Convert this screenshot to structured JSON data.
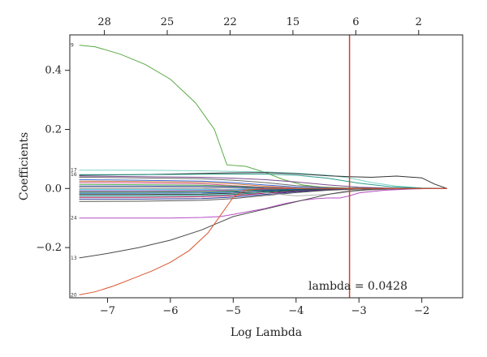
{
  "chart_data": {
    "type": "line",
    "title": "",
    "xlabel": "Log Lambda",
    "ylabel": "Coefficients",
    "xlim": [
      -7.6,
      -1.35
    ],
    "ylim": [
      -0.37,
      0.52
    ],
    "x_ticks": [
      -7,
      -6,
      -5,
      -4,
      -3,
      -2
    ],
    "x_tick_labels": [
      "−7",
      "−6",
      "−5",
      "−4",
      "−3",
      "−2"
    ],
    "y_ticks": [
      0.4,
      0.2,
      0.0,
      -0.2
    ],
    "y_tick_labels": [
      "0.4",
      "0.2",
      "0.0",
      "−0.2"
    ],
    "top_axis": {
      "positions": [
        -7.05,
        -6.05,
        -5.05,
        -4.05,
        -3.05,
        -2.05
      ],
      "labels": [
        "28",
        "25",
        "22",
        "15",
        "6",
        "2"
      ]
    },
    "vline": {
      "x": -3.15,
      "color": "#c8452b"
    },
    "annotation": "lambda = 0.0428",
    "grid": false,
    "series": [
      {
        "label": "9",
        "color": "#5aab46",
        "x": [
          -7.45,
          -7.2,
          -6.8,
          -6.4,
          -6.0,
          -5.6,
          -5.3,
          -5.1,
          -4.8,
          -4.5,
          -4.2,
          -3.9,
          -3.6,
          -3.2,
          -2.8,
          -2.4,
          -2.0,
          -1.6
        ],
        "y": [
          0.485,
          0.48,
          0.455,
          0.42,
          0.37,
          0.29,
          0.2,
          0.08,
          0.075,
          0.055,
          0.03,
          0.012,
          0.005,
          0.002,
          0.001,
          0.0,
          0.0,
          0.0
        ]
      },
      {
        "label": "17",
        "color": "#7fd3c8",
        "x": [
          -7.45,
          -7.0,
          -6.5,
          -6.0,
          -5.5,
          -5.0,
          -4.5,
          -4.0,
          -3.5,
          -3.15,
          -2.8,
          -2.4,
          -2.0,
          -1.6
        ],
        "y": [
          0.062,
          0.062,
          0.062,
          0.061,
          0.06,
          0.058,
          0.056,
          0.052,
          0.045,
          0.036,
          0.02,
          0.008,
          0.002,
          0.0
        ]
      },
      {
        "label": "",
        "color": "#333333",
        "x": [
          -7.45,
          -7.0,
          -6.5,
          -6.0,
          -5.5,
          -5.0,
          -4.5,
          -4.0,
          -3.5,
          -3.15,
          -2.8,
          -2.4,
          -2.0,
          -1.8,
          -1.6
        ],
        "y": [
          0.045,
          0.046,
          0.047,
          0.049,
          0.051,
          0.053,
          0.054,
          0.05,
          0.043,
          0.04,
          0.038,
          0.042,
          0.036,
          0.015,
          0.0
        ]
      },
      {
        "label": "16",
        "color": "#2a9d8f",
        "x": [
          -7.45,
          -6.5,
          -5.5,
          -5.0,
          -4.5,
          -4.0,
          -3.5,
          -3.0,
          -2.5,
          -2.0,
          -1.6
        ],
        "y": [
          0.047,
          0.047,
          0.048,
          0.049,
          0.049,
          0.045,
          0.035,
          0.018,
          0.006,
          0.001,
          0.0
        ]
      },
      {
        "label": "",
        "color": "#7b4a8c",
        "x": [
          -7.45,
          -6.5,
          -5.5,
          -5.0,
          -4.5,
          -4.0,
          -3.5,
          -3.0,
          -2.5,
          -2.0,
          -1.6
        ],
        "y": [
          0.042,
          0.04,
          0.038,
          0.035,
          0.03,
          0.022,
          0.012,
          0.004,
          0.001,
          0.0,
          0.0
        ]
      },
      {
        "label": "",
        "color": "#6a6a6a",
        "x": [
          -7.45,
          -6.5,
          -5.5,
          -5.0,
          -4.5,
          -4.0,
          -3.5,
          -3.0,
          -2.5,
          -2.0,
          -1.6
        ],
        "y": [
          0.038,
          0.036,
          0.033,
          0.028,
          0.02,
          0.01,
          0.003,
          0.0,
          0.0,
          0.0,
          0.0
        ]
      },
      {
        "label": "",
        "color": "#3b6bd6",
        "x": [
          -7.45,
          -6.5,
          -5.5,
          -5.0,
          -4.5,
          -4.0,
          -3.5,
          -3.0,
          -2.5,
          -2.0,
          -1.6
        ],
        "y": [
          0.03,
          0.028,
          0.025,
          0.02,
          0.012,
          0.005,
          0.001,
          0.0,
          0.0,
          0.0,
          0.0
        ]
      },
      {
        "label": "",
        "color": "#d17a3a",
        "x": [
          -7.45,
          -6.5,
          -5.5,
          -5.0,
          -4.5,
          -4.0,
          -3.5,
          -3.0,
          -2.5,
          -2.0,
          -1.6
        ],
        "y": [
          0.025,
          0.024,
          0.021,
          0.016,
          0.008,
          0.002,
          0.0,
          0.0,
          0.0,
          0.0,
          0.0
        ]
      },
      {
        "label": "",
        "color": "#d44c8a",
        "x": [
          -7.45,
          -6.5,
          -5.5,
          -5.0,
          -4.5,
          -4.0,
          -3.5,
          -3.0,
          -2.5,
          -2.0,
          -1.6
        ],
        "y": [
          0.02,
          0.019,
          0.016,
          0.01,
          0.004,
          0.001,
          0.0,
          0.0,
          0.0,
          0.0,
          0.0
        ]
      },
      {
        "label": "",
        "color": "#4caf50",
        "x": [
          -7.45,
          -6.5,
          -5.5,
          -5.0,
          -4.5,
          -4.0,
          -3.5,
          -3.0,
          -2.5,
          -2.0,
          -1.6
        ],
        "y": [
          0.014,
          0.013,
          0.011,
          0.008,
          0.003,
          0.0,
          0.0,
          0.0,
          0.0,
          0.0,
          0.0
        ]
      },
      {
        "label": "",
        "color": "#1f2f8a",
        "x": [
          -7.45,
          -6.5,
          -5.5,
          -5.0,
          -4.5,
          -4.0,
          -3.5,
          -3.0,
          -2.5,
          -2.0,
          -1.6
        ],
        "y": [
          0.008,
          0.008,
          0.007,
          0.005,
          0.002,
          0.0,
          0.0,
          0.0,
          0.0,
          0.0,
          0.0
        ]
      },
      {
        "label": "",
        "color": "#9e9e9e",
        "x": [
          -7.45,
          -6.5,
          -5.5,
          -5.0,
          -4.5,
          -4.0,
          -3.5,
          -3.0,
          -2.5,
          -2.0,
          -1.6
        ],
        "y": [
          0.003,
          0.003,
          0.002,
          0.001,
          0.0,
          0.0,
          0.0,
          0.0,
          0.0,
          0.0,
          0.0
        ]
      },
      {
        "label": "",
        "color": "#3cb5d9",
        "x": [
          -7.45,
          -6.5,
          -5.5,
          -5.0,
          -4.5,
          -4.0,
          -3.5,
          -3.0,
          -2.5,
          -2.0,
          -1.6
        ],
        "y": [
          -0.004,
          -0.004,
          -0.004,
          -0.003,
          -0.001,
          0.0,
          0.0,
          0.0,
          0.0,
          0.0,
          0.0
        ]
      },
      {
        "label": "",
        "color": "#8e44ad",
        "x": [
          -7.45,
          -6.5,
          -5.5,
          -5.0,
          -4.5,
          -4.0,
          -3.5,
          -3.0,
          -2.5,
          -2.0,
          -1.6
        ],
        "y": [
          -0.008,
          -0.008,
          -0.007,
          -0.006,
          -0.003,
          -0.001,
          0.0,
          0.0,
          0.0,
          0.0,
          0.0
        ]
      },
      {
        "label": "",
        "color": "#2e7d32",
        "x": [
          -7.45,
          -6.5,
          -5.5,
          -5.0,
          -4.5,
          -4.0,
          -3.5,
          -3.0,
          -2.5,
          -2.0,
          -1.6
        ],
        "y": [
          -0.012,
          -0.012,
          -0.011,
          -0.009,
          -0.005,
          -0.002,
          0.0,
          0.0,
          0.0,
          0.0,
          0.0
        ]
      },
      {
        "label": "",
        "color": "#1565c0",
        "x": [
          -7.45,
          -6.5,
          -5.5,
          -5.0,
          -4.5,
          -4.0,
          -3.5,
          -3.0,
          -2.5,
          -2.0,
          -1.6
        ],
        "y": [
          -0.016,
          -0.016,
          -0.015,
          -0.012,
          -0.007,
          -0.003,
          -0.001,
          0.0,
          0.0,
          0.0,
          0.0
        ]
      },
      {
        "label": "",
        "color": "#333333",
        "x": [
          -7.45,
          -6.5,
          -5.5,
          -5.0,
          -4.5,
          -4.0,
          -3.5,
          -3.0,
          -2.5,
          -2.0,
          -1.6
        ],
        "y": [
          -0.02,
          -0.02,
          -0.019,
          -0.016,
          -0.01,
          -0.005,
          -0.002,
          0.0,
          0.0,
          0.0,
          0.0
        ]
      },
      {
        "label": "",
        "color": "#00897b",
        "x": [
          -7.45,
          -6.5,
          -5.5,
          -5.0,
          -4.5,
          -4.0,
          -3.5,
          -3.0,
          -2.5,
          -2.0,
          -1.6
        ],
        "y": [
          -0.025,
          -0.025,
          -0.023,
          -0.02,
          -0.013,
          -0.007,
          -0.003,
          -0.001,
          0.0,
          0.0,
          0.0
        ]
      },
      {
        "label": "",
        "color": "#ad1457",
        "x": [
          -7.45,
          -6.5,
          -5.5,
          -5.0,
          -4.5,
          -4.0,
          -3.5,
          -3.0,
          -2.5,
          -2.0,
          -1.6
        ],
        "y": [
          -0.03,
          -0.03,
          -0.028,
          -0.024,
          -0.016,
          -0.009,
          -0.004,
          -0.001,
          0.0,
          0.0,
          0.0
        ]
      },
      {
        "label": "",
        "color": "#283593",
        "x": [
          -7.45,
          -6.5,
          -5.5,
          -5.0,
          -4.5,
          -4.0,
          -3.5,
          -3.0,
          -2.5,
          -2.0,
          -1.6
        ],
        "y": [
          -0.036,
          -0.036,
          -0.034,
          -0.029,
          -0.02,
          -0.011,
          -0.005,
          -0.001,
          0.0,
          0.0,
          0.0
        ]
      },
      {
        "label": "",
        "color": "#555555",
        "x": [
          -7.45,
          -6.5,
          -5.5,
          -5.0,
          -4.5,
          -4.0,
          -3.5,
          -3.0,
          -2.5,
          -2.0,
          -1.6
        ],
        "y": [
          -0.044,
          -0.043,
          -0.04,
          -0.034,
          -0.024,
          -0.014,
          -0.006,
          -0.002,
          0.0,
          0.0,
          0.0
        ]
      },
      {
        "label": "",
        "color": "#b0b0b0",
        "x": [
          -7.45,
          -7.0,
          -6.5,
          -6.0,
          -5.5,
          -5.0,
          -4.5,
          -4.0,
          -3.5,
          -3.0,
          -2.5,
          -2.0,
          -1.6
        ],
        "y": [
          0.0,
          0.0,
          0.0,
          0.0,
          0.0,
          -0.005,
          -0.015,
          -0.025,
          -0.02,
          -0.008,
          -0.002,
          0.0,
          0.0
        ]
      },
      {
        "label": "24",
        "color": "#b64ec4",
        "x": [
          -7.45,
          -7.0,
          -6.5,
          -6.0,
          -5.5,
          -5.2,
          -5.0,
          -4.8,
          -4.5,
          -4.2,
          -3.9,
          -3.7,
          -3.5,
          -3.3,
          -3.15,
          -3.0,
          -2.6,
          -2.2,
          -1.8,
          -1.6
        ],
        "y": [
          -0.1,
          -0.1,
          -0.1,
          -0.1,
          -0.098,
          -0.095,
          -0.088,
          -0.08,
          -0.068,
          -0.052,
          -0.04,
          -0.035,
          -0.032,
          -0.032,
          -0.025,
          -0.015,
          -0.006,
          -0.002,
          0.0,
          0.0
        ]
      },
      {
        "label": "13",
        "color": "#4a4a4a",
        "x": [
          -7.45,
          -7.0,
          -6.5,
          -6.0,
          -5.5,
          -5.0,
          -4.5,
          -4.0,
          -3.5,
          -3.15,
          -2.8,
          -2.4,
          -2.0,
          -1.6
        ],
        "y": [
          -0.235,
          -0.22,
          -0.2,
          -0.175,
          -0.14,
          -0.095,
          -0.07,
          -0.045,
          -0.02,
          -0.008,
          -0.003,
          -0.001,
          0.0,
          0.0
        ]
      },
      {
        "label": "20",
        "color": "#d9552e",
        "x": [
          -7.45,
          -7.2,
          -6.9,
          -6.6,
          -6.3,
          -6.0,
          -5.7,
          -5.4,
          -5.2,
          -5.0,
          -4.8,
          -4.5,
          -4.2,
          -3.9,
          -3.6,
          -3.3,
          -3.0,
          -2.6,
          -2.2,
          -1.8,
          -1.6
        ],
        "y": [
          -0.36,
          -0.35,
          -0.33,
          -0.305,
          -0.28,
          -0.25,
          -0.21,
          -0.15,
          -0.09,
          -0.03,
          -0.005,
          0.0,
          0.0,
          0.0,
          0.0,
          0.0,
          0.0,
          0.0,
          0.0,
          0.0,
          0.0
        ]
      }
    ]
  }
}
